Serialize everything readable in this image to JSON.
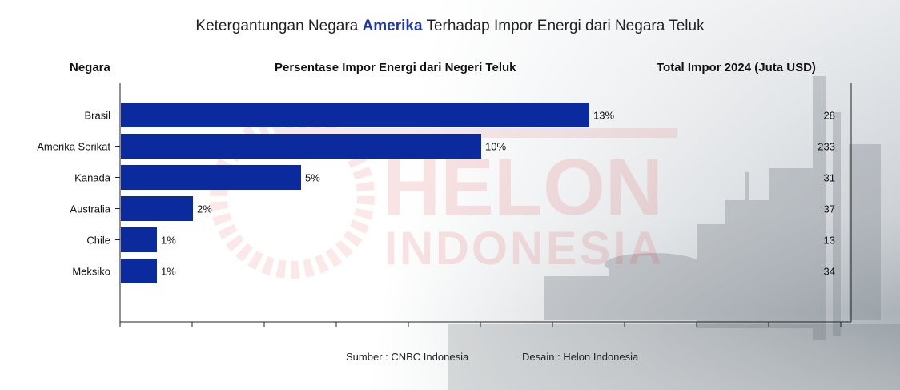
{
  "title": {
    "prefix": "Ketergantungan Negara ",
    "highlight": "Amerika",
    "suffix": " Terhadap Impor Energi dari Negara Teluk",
    "highlight_color": "#1f36a8"
  },
  "headers": {
    "country": "Negara",
    "percent": "Persentase Impor Energi dari Negeri Teluk",
    "total": "Total Impor 2024 (Juta USD)"
  },
  "chart_data": {
    "type": "bar",
    "orientation": "horizontal",
    "categories": [
      "Brasil",
      "Amerika Serikat",
      "Kanada",
      "Australia",
      "Chile",
      "Meksiko"
    ],
    "values": [
      13,
      10,
      5,
      2,
      1,
      1
    ],
    "value_labels": [
      "13%",
      "10%",
      "5%",
      "2%",
      "1%",
      "1%"
    ],
    "totals": [
      "28",
      "233",
      "31",
      "37",
      "13",
      "34"
    ],
    "bar_color": "#0a2a9e",
    "xlim": [
      0,
      20
    ],
    "grid": false
  },
  "watermark": {
    "line1": "HELON",
    "line2": "INDONESIA",
    "color": "#d9252a"
  },
  "footer": {
    "source": "Sumber : CNBC Indonesia",
    "design": "Desain : Helon Indonesia"
  }
}
